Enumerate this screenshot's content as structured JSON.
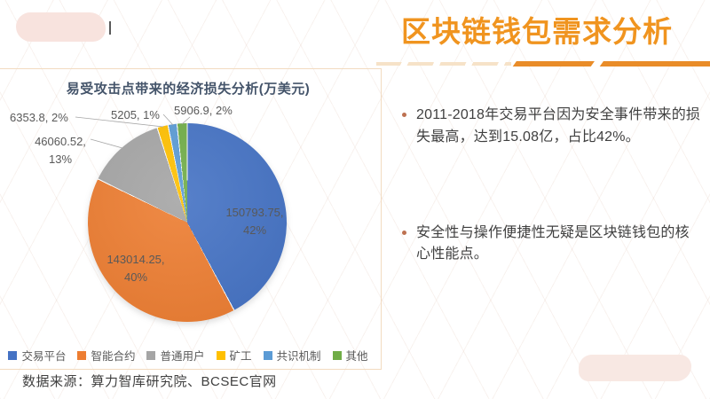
{
  "slide": {
    "title": "区块链钱包需求分析",
    "bullets": [
      "2011-2018年交易平台因为安全事件带来的损失最高，达到15.08亿，占比42%。",
      "安全性与操作便捷性无疑是区块链钱包的核心性能点。"
    ],
    "source": "数据来源：算力智库研究院、BCSEC官网"
  },
  "chart_data": {
    "type": "pie",
    "title": "易受攻击点带来的经济损失分析(万美元)",
    "unit": "万美元",
    "categories": [
      "交易平台",
      "智能合约",
      "普通用户",
      "矿工",
      "共识机制",
      "其他"
    ],
    "values": [
      150793.75,
      143014.25,
      46060.52,
      6353.8,
      5205,
      5906.9
    ],
    "percents": [
      "42%",
      "40%",
      "13%",
      "2%",
      "1%",
      "2%"
    ],
    "labels": [
      "150793.75, 42%",
      "143014.25, 40%",
      "46060.52, 13%",
      "6353.8, 2%",
      "5205, 1%",
      "5906.9, 2%"
    ],
    "colors": [
      "#4472C4",
      "#ED7D31",
      "#A5A5A5",
      "#FFC000",
      "#5B9BD5",
      "#70AD47"
    ],
    "legend_position": "bottom",
    "start_angle_deg": 0,
    "direction": "clockwise"
  },
  "theme": {
    "title_orange": "#F0941F",
    "underline_dark": "#E98C28",
    "underline_light": "#F6E2C8",
    "chart_title_color": "#44546A",
    "label_gray": "#595959",
    "box_border": "#F2DBC0"
  }
}
